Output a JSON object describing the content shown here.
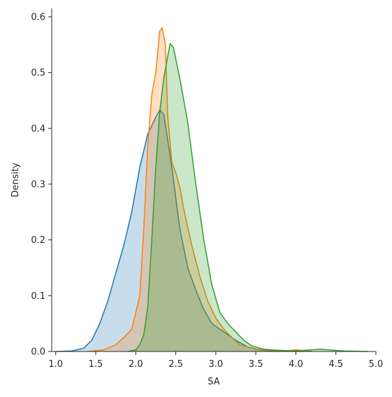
{
  "chart_data": {
    "type": "area",
    "title": "",
    "xlabel": "SA",
    "ylabel": "Density",
    "xlim": [
      0.95,
      5.0
    ],
    "ylim": [
      0.0,
      0.615
    ],
    "xticks": [
      "1.0",
      "1.5",
      "2.0",
      "2.5",
      "3.0",
      "3.5",
      "4.0",
      "4.5",
      "5.0"
    ],
    "yticks": [
      "0.0",
      "0.1",
      "0.2",
      "0.3",
      "0.4",
      "0.5",
      "0.6"
    ],
    "grid": false,
    "legend": "none",
    "series": [
      {
        "color": "#1f77b4",
        "x": [
          1.0,
          1.2,
          1.35,
          1.45,
          1.55,
          1.65,
          1.75,
          1.85,
          1.95,
          2.05,
          2.15,
          2.25,
          2.3,
          2.35,
          2.45,
          2.55,
          2.65,
          2.75,
          2.85,
          2.95,
          3.1,
          3.25,
          3.4,
          3.55,
          3.7,
          3.8
        ],
        "y": [
          0.0,
          0.001,
          0.006,
          0.02,
          0.05,
          0.09,
          0.14,
          0.19,
          0.25,
          0.33,
          0.39,
          0.42,
          0.433,
          0.425,
          0.33,
          0.22,
          0.15,
          0.11,
          0.075,
          0.05,
          0.035,
          0.02,
          0.008,
          0.003,
          0.001,
          0.0
        ]
      },
      {
        "color": "#ff7f0e",
        "x": [
          1.4,
          1.6,
          1.75,
          1.85,
          1.95,
          2.05,
          2.1,
          2.15,
          2.2,
          2.25,
          2.3,
          2.33,
          2.37,
          2.4,
          2.45,
          2.5,
          2.55,
          2.6,
          2.7,
          2.8,
          2.9,
          3.0,
          3.1,
          3.2,
          3.3,
          3.5,
          3.7,
          3.85,
          4.0,
          4.2
        ],
        "y": [
          0.0,
          0.003,
          0.012,
          0.025,
          0.04,
          0.1,
          0.22,
          0.37,
          0.46,
          0.5,
          0.575,
          0.58,
          0.55,
          0.42,
          0.34,
          0.32,
          0.295,
          0.255,
          0.19,
          0.135,
          0.09,
          0.06,
          0.04,
          0.025,
          0.012,
          0.004,
          0.002,
          0.001,
          0.003,
          0.0
        ]
      },
      {
        "color": "#2ca02c",
        "x": [
          1.9,
          2.0,
          2.05,
          2.1,
          2.15,
          2.2,
          2.25,
          2.3,
          2.35,
          2.4,
          2.43,
          2.47,
          2.55,
          2.65,
          2.75,
          2.85,
          2.95,
          3.05,
          3.15,
          3.25,
          3.35,
          3.45,
          3.6,
          3.8,
          4.0,
          4.3,
          4.6,
          4.9
        ],
        "y": [
          0.0,
          0.003,
          0.012,
          0.03,
          0.08,
          0.2,
          0.33,
          0.43,
          0.49,
          0.53,
          0.552,
          0.545,
          0.49,
          0.41,
          0.3,
          0.2,
          0.12,
          0.07,
          0.05,
          0.035,
          0.02,
          0.01,
          0.004,
          0.002,
          0.001,
          0.004,
          0.001,
          0.0
        ]
      }
    ]
  }
}
